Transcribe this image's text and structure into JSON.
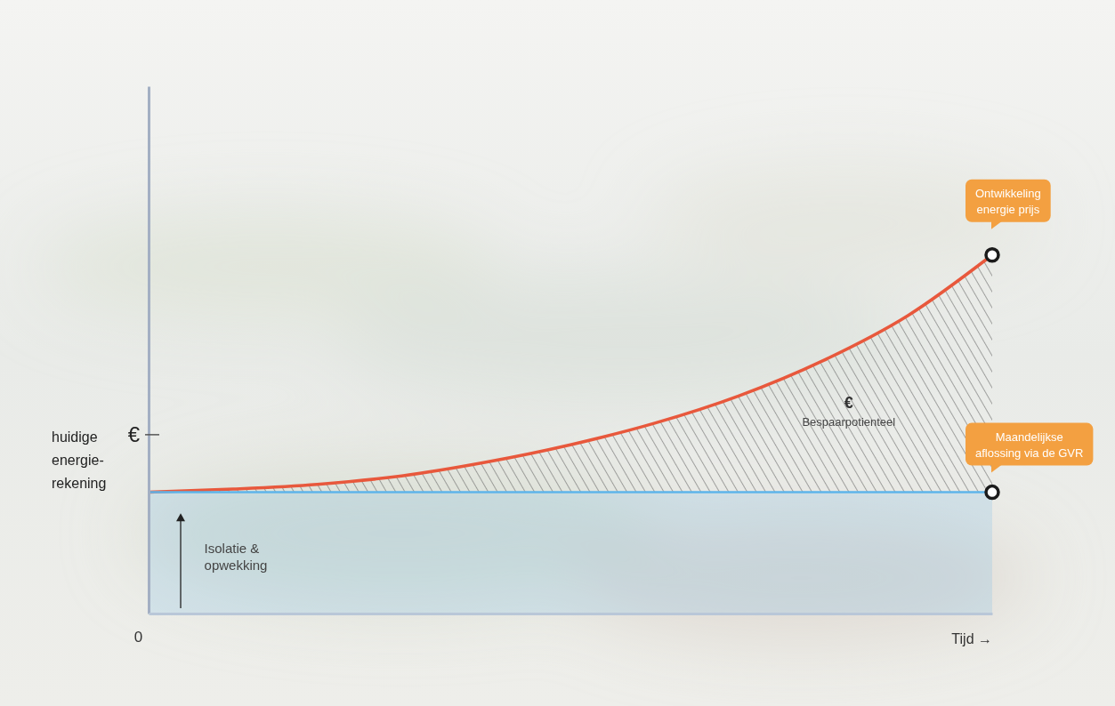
{
  "chart_data": {
    "type": "line",
    "x": [
      0,
      1,
      2,
      3,
      4,
      5,
      6,
      7,
      8,
      9,
      10
    ],
    "xlim": [
      0,
      10
    ],
    "xticks": [
      0
    ],
    "xlabel": "Tijd →",
    "ylim": [
      0,
      100
    ],
    "yticks": [
      {
        "value": 34,
        "label": "€"
      }
    ],
    "ylabel": "huidige\nenergie-\nrekening",
    "grid": false,
    "series": [
      {
        "name": "Ontwikkeling\nenergie prijs",
        "color": "#e8583c",
        "values": [
          23,
          23.6,
          24.5,
          26.1,
          28.7,
          32,
          36.1,
          41.3,
          48,
          56.5,
          68
        ]
      },
      {
        "name": "Maandelijkse\naflossing via de GVR",
        "color": "#5eb4ea",
        "values": [
          23,
          23,
          23,
          23,
          23,
          23,
          23,
          23,
          23,
          23,
          23
        ]
      }
    ],
    "annotations": [
      {
        "text": "€\nBespaarpotienteel",
        "x": 8.3,
        "y": 39
      },
      {
        "text": "Isolatie &\nopwekking",
        "x": 0.66,
        "y": 11.5,
        "arrow": {
          "x": 0.38,
          "from": 1,
          "to": 19
        }
      }
    ]
  }
}
